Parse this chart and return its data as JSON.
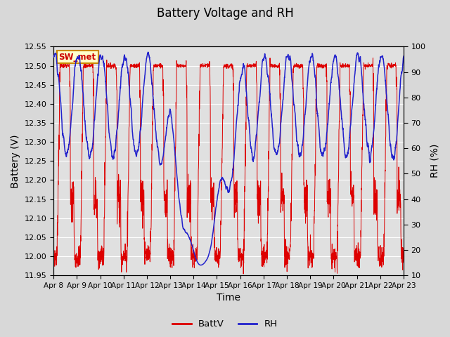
{
  "title": "Battery Voltage and RH",
  "xlabel": "Time",
  "ylabel_left": "Battery (V)",
  "ylabel_right": "RH (%)",
  "station_label": "SW_met",
  "ylim_left": [
    11.95,
    12.55
  ],
  "ylim_right": [
    10,
    100
  ],
  "xtick_labels": [
    "Apr 8",
    "Apr 9",
    "Apr 10",
    "Apr 11",
    "Apr 12",
    "Apr 13",
    "Apr 14",
    "Apr 15",
    "Apr 16",
    "Apr 17",
    "Apr 18",
    "Apr 19",
    "Apr 20",
    "Apr 21",
    "Apr 22",
    "Apr 23"
  ],
  "color_batt": "#dd0000",
  "color_rh": "#2222cc",
  "legend_labels": [
    "BattV",
    "RH"
  ],
  "fig_facecolor": "#d8d8d8",
  "plot_facecolor": "#e0e0e0",
  "grid_color": "#ffffff",
  "station_label_bg": "#ffffcc",
  "station_label_border": "#cc8800",
  "title_fontsize": 12,
  "label_fontsize": 9,
  "tick_fontsize": 8
}
